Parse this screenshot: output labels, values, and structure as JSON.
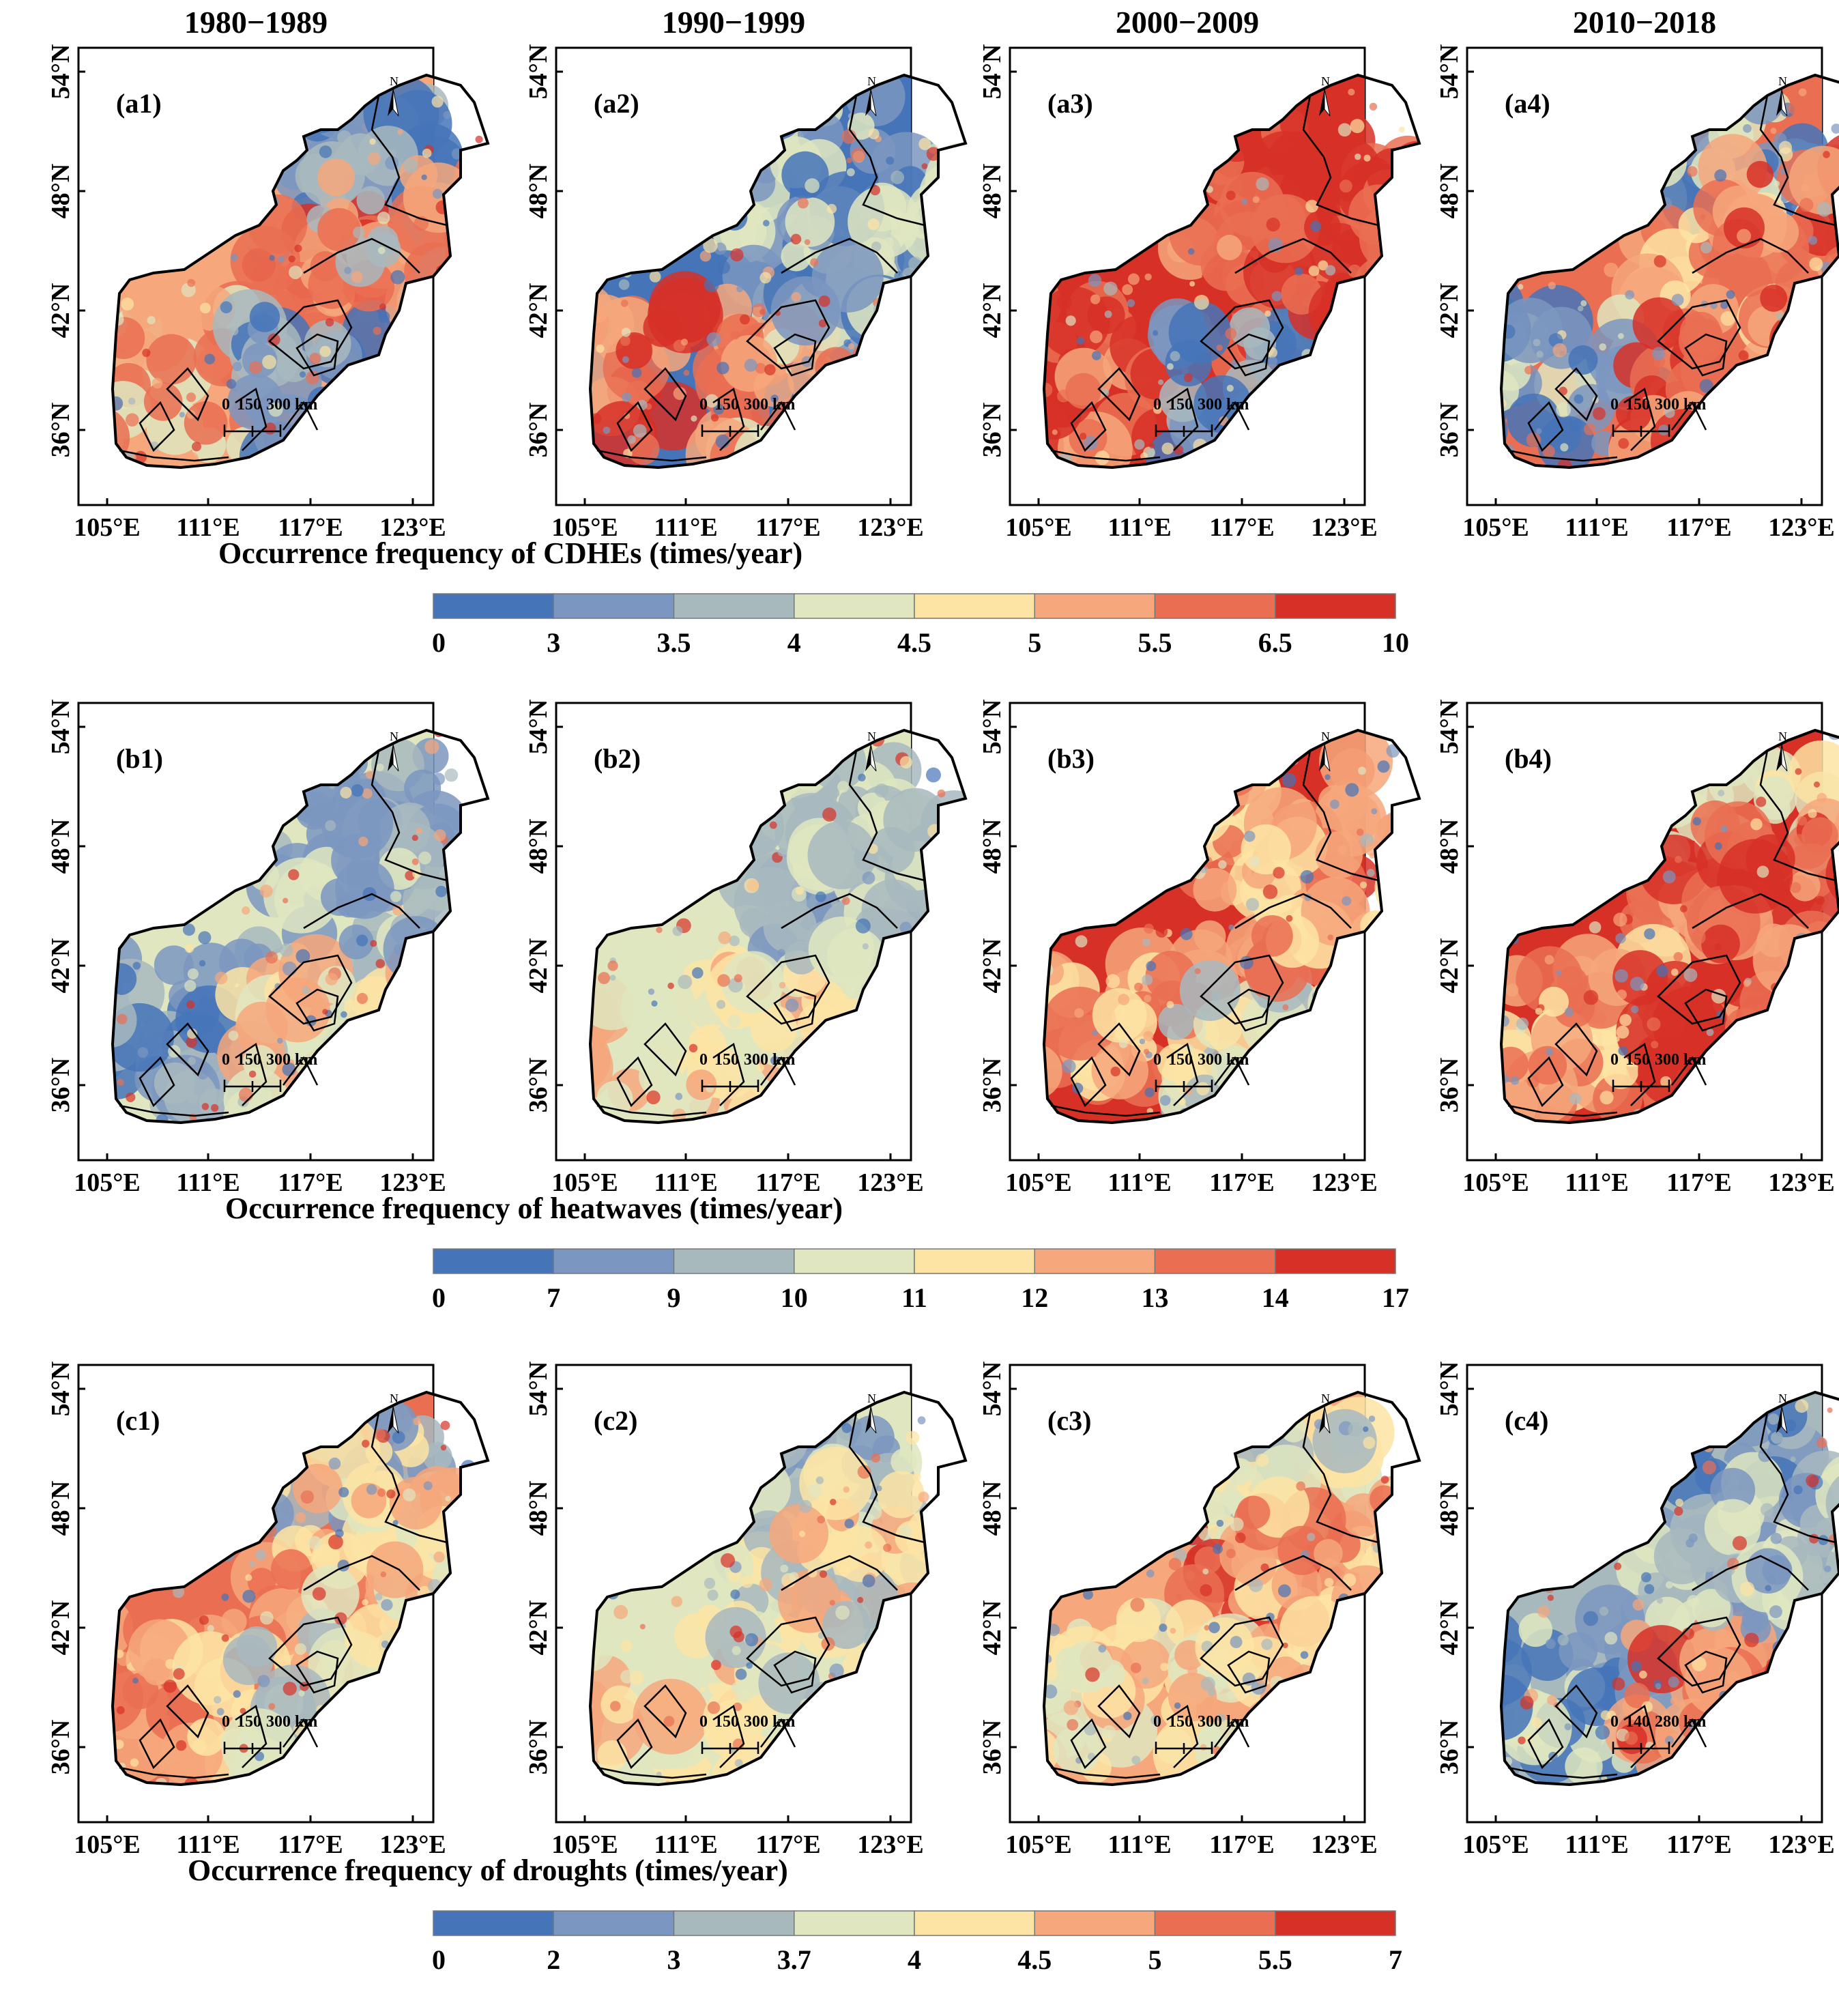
{
  "periods": [
    "1980−1989",
    "1990−1999",
    "2000−2009",
    "2010−2018"
  ],
  "axes": {
    "lat_labels": [
      "54°N",
      "48°N",
      "42°N",
      "36°N"
    ],
    "lon_labels": [
      "105°E",
      "111°E",
      "117°E",
      "123°E"
    ]
  },
  "north_label": "N",
  "rows": [
    {
      "id": "cdhe",
      "legend_title": "Occurrence frequency of CDHEs (times/year)",
      "legend_ticks": [
        "0",
        "3",
        "3.5",
        "4",
        "4.5",
        "5",
        "5.5",
        "6.5",
        "10"
      ],
      "panels": [
        {
          "tag": "(a1)",
          "scale": [
            "0",
            "150",
            "300 km"
          ]
        },
        {
          "tag": "(a2)",
          "scale": [
            "0",
            "150",
            "300 km"
          ]
        },
        {
          "tag": "(a3)",
          "scale": [
            "0",
            "150",
            "300 km"
          ]
        },
        {
          "tag": "(a4)",
          "scale": [
            "0",
            "150",
            "300 km"
          ]
        }
      ]
    },
    {
      "id": "heatwave",
      "legend_title": "Occurrence frequency of heatwaves (times/year)",
      "legend_ticks": [
        "0",
        "7",
        "9",
        "10",
        "11",
        "12",
        "13",
        "14",
        "17"
      ],
      "panels": [
        {
          "tag": "(b1)",
          "scale": [
            "0",
            "150",
            "300 km"
          ]
        },
        {
          "tag": "(b2)",
          "scale": [
            "0",
            "150",
            "300 km"
          ]
        },
        {
          "tag": "(b3)",
          "scale": [
            "0",
            "150",
            "300 km"
          ]
        },
        {
          "tag": "(b4)",
          "scale": [
            "0",
            "150",
            "300 km"
          ]
        }
      ]
    },
    {
      "id": "drought",
      "legend_title": "Occurrence frequency of droughts (times/year)",
      "legend_ticks": [
        "0",
        "2",
        "3",
        "3.7",
        "4",
        "4.5",
        "5",
        "5.5",
        "7"
      ],
      "panels": [
        {
          "tag": "(c1)",
          "scale": [
            "0",
            "150",
            "300 km"
          ]
        },
        {
          "tag": "(c2)",
          "scale": [
            "0",
            "150",
            "300 km"
          ]
        },
        {
          "tag": "(c3)",
          "scale": [
            "0",
            "150",
            "300 km"
          ]
        },
        {
          "tag": "(c4)",
          "scale": [
            "0",
            "140",
            "280 km"
          ]
        }
      ]
    }
  ],
  "palette": [
    "#4574b8",
    "#7b96c0",
    "#a8b9be",
    "#dfe6c0",
    "#fde4a4",
    "#f6a77b",
    "#ea6f52",
    "#d73027"
  ]
}
